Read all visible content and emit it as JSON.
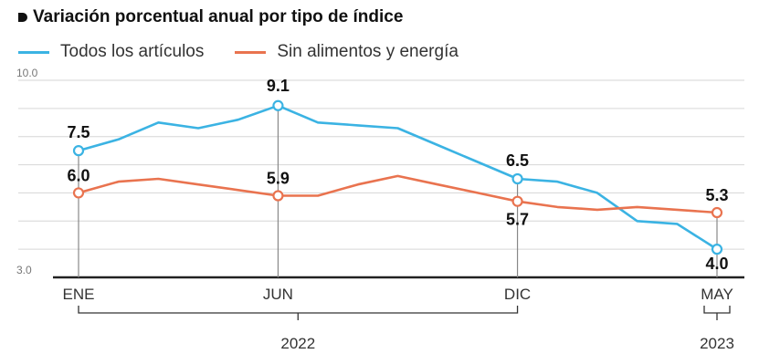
{
  "title": "Variación porcentual anual por tipo de índice",
  "colors": {
    "series_todos": "#3bb3e3",
    "series_sin": "#e9734f",
    "axis": "#222222",
    "grid": "#d6d6d6",
    "marker_line": "#888888"
  },
  "chart_data": {
    "type": "line",
    "title": "Variación porcentual anual por tipo de índice",
    "xlabel": "",
    "ylabel": "",
    "ylim": [
      3.0,
      10.0
    ],
    "y_ticks": [
      "10.0",
      "3.0"
    ],
    "x_tick_labels": [
      {
        "label": "ENE",
        "index": 0
      },
      {
        "label": "JUN",
        "index": 5
      },
      {
        "label": "DIC",
        "index": 11
      },
      {
        "label": "MAY",
        "index": 16
      }
    ],
    "year_labels": [
      {
        "label": "2022",
        "from": 0,
        "to": 11
      },
      {
        "label": "2023",
        "from": 16,
        "to": 16
      }
    ],
    "legend_placement": "top-left",
    "grid": true,
    "series": [
      {
        "name": "Todos los artículos",
        "color_key": "series_todos",
        "values": [
          7.5,
          7.9,
          8.5,
          8.3,
          8.6,
          9.1,
          8.5,
          8.4,
          8.3,
          7.7,
          7.1,
          6.5,
          6.4,
          6.0,
          5.0,
          4.9,
          4.0
        ],
        "labeled": [
          {
            "index": 0,
            "label": "7.5"
          },
          {
            "index": 5,
            "label": "9.1"
          },
          {
            "index": 11,
            "label": "6.5"
          },
          {
            "index": 16,
            "label": "4.0"
          }
        ]
      },
      {
        "name": "Sin alimentos y energía",
        "color_key": "series_sin",
        "values": [
          6.0,
          6.4,
          6.5,
          6.3,
          6.1,
          5.9,
          5.9,
          6.3,
          6.6,
          6.3,
          6.0,
          5.7,
          5.5,
          5.4,
          5.5,
          5.4,
          5.3
        ],
        "labeled": [
          {
            "index": 0,
            "label": "6.0"
          },
          {
            "index": 5,
            "label": "5.9"
          },
          {
            "index": 11,
            "label": "5.7"
          },
          {
            "index": 16,
            "label": "5.3"
          }
        ]
      }
    ]
  }
}
